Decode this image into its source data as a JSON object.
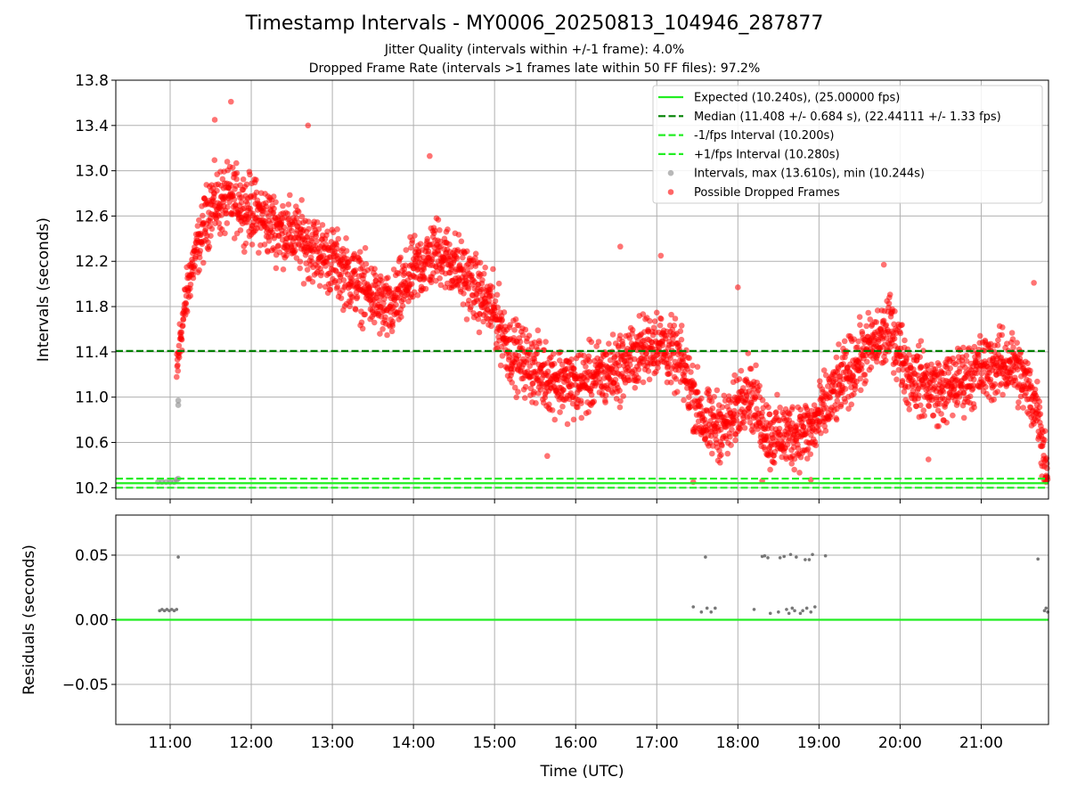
{
  "header": {
    "title": "Timestamp Intervals - MY0006_20250813_104946_287877",
    "subtitle_1": "Jitter Quality (intervals within +/-1 frame): 4.0%",
    "subtitle_2": "Dropped Frame Rate (intervals >1 frames late within 50 FF files): 97.2%"
  },
  "chart_data": [
    {
      "type": "scatter",
      "name": "intervals",
      "ylabel": "Intervals (seconds)",
      "ylim": [
        10.1,
        13.8
      ],
      "xlim_hours": [
        10.33,
        21.83
      ],
      "yticks": [
        "10.2",
        "10.6",
        "11.0",
        "11.4",
        "11.8",
        "12.2",
        "12.6",
        "13.0",
        "13.4",
        "13.8"
      ],
      "grid": true,
      "legend_position": "top-right",
      "reference_lines": [
        {
          "label": "Expected (10.240s), (25.00000 fps)",
          "y": 10.24,
          "style": "solid",
          "color": "#22ee22"
        },
        {
          "label": "Median (11.408 +/- 0.684 s), (22.44111 +/- 1.33 fps)",
          "y": 11.408,
          "style": "dashed",
          "color": "#008000"
        },
        {
          "label": "-1/fps Interval (10.200s)",
          "y": 10.2,
          "style": "dashed",
          "color": "#22ee22"
        },
        {
          "label": "+1/fps Interval (10.280s)",
          "y": 10.28,
          "style": "dashed",
          "color": "#22ee22"
        }
      ],
      "series": [
        {
          "name": "Intervals, max (13.610s), min (10.244s)",
          "color": "#888888",
          "points": [
            [
              10.85,
              10.25
            ],
            [
              10.9,
              10.25
            ],
            [
              10.95,
              10.25
            ],
            [
              11.0,
              10.25
            ],
            [
              11.05,
              10.25
            ],
            [
              11.08,
              10.27
            ],
            [
              11.1,
              10.28
            ],
            [
              11.1,
              10.97
            ],
            [
              11.1,
              10.93
            ]
          ]
        },
        {
          "name": "Possible Dropped Frames",
          "color": "#ff0000",
          "trend": [
            [
              11.05,
              10.9
            ],
            [
              11.12,
              11.5
            ],
            [
              11.25,
              12.1
            ],
            [
              11.5,
              12.7
            ],
            [
              11.8,
              12.75
            ],
            [
              12.2,
              12.55
            ],
            [
              12.6,
              12.4
            ],
            [
              13.0,
              12.2
            ],
            [
              13.4,
              11.95
            ],
            [
              13.7,
              11.75
            ],
            [
              14.0,
              12.1
            ],
            [
              14.3,
              12.3
            ],
            [
              14.6,
              12.1
            ],
            [
              15.0,
              11.75
            ],
            [
              15.2,
              11.4
            ],
            [
              15.6,
              11.2
            ],
            [
              16.0,
              11.1
            ],
            [
              16.5,
              11.25
            ],
            [
              17.0,
              11.5
            ],
            [
              17.3,
              11.3
            ],
            [
              17.6,
              10.75
            ],
            [
              17.9,
              10.75
            ],
            [
              18.1,
              11.1
            ],
            [
              18.4,
              10.65
            ],
            [
              18.9,
              10.7
            ],
            [
              19.2,
              11.05
            ],
            [
              19.5,
              11.35
            ],
            [
              19.9,
              11.6
            ],
            [
              20.1,
              11.2
            ],
            [
              20.5,
              11.05
            ],
            [
              21.0,
              11.25
            ],
            [
              21.4,
              11.3
            ],
            [
              21.7,
              10.9
            ],
            [
              21.8,
              10.4
            ]
          ],
          "outliers": [
            [
              11.75,
              13.61
            ],
            [
              11.55,
              13.45
            ],
            [
              12.7,
              13.4
            ],
            [
              14.2,
              13.13
            ],
            [
              16.55,
              12.33
            ],
            [
              17.05,
              12.25
            ],
            [
              19.8,
              12.17
            ],
            [
              21.65,
              12.01
            ],
            [
              18.0,
              11.97
            ],
            [
              15.65,
              10.48
            ],
            [
              20.35,
              10.45
            ],
            [
              17.45,
              10.25
            ],
            [
              18.3,
              10.26
            ],
            [
              18.9,
              10.27
            ],
            [
              21.75,
              10.3
            ],
            [
              21.8,
              10.25
            ]
          ]
        }
      ]
    },
    {
      "type": "scatter",
      "name": "residuals",
      "ylabel": "Residuals (seconds)",
      "xlabel": "Time (UTC)",
      "ylim": [
        -0.081,
        0.081
      ],
      "yticks": [
        "−0.05",
        "0.00",
        "0.05"
      ],
      "xticks": [
        "11:00",
        "12:00",
        "13:00",
        "14:00",
        "15:00",
        "16:00",
        "17:00",
        "18:00",
        "19:00",
        "20:00",
        "21:00"
      ],
      "grid": true,
      "zero_line_color": "#22ee22",
      "series": [
        {
          "name": "residuals",
          "color": "#777777",
          "points": [
            [
              10.87,
              0.007
            ],
            [
              10.9,
              0.008
            ],
            [
              10.93,
              0.007
            ],
            [
              10.96,
              0.008
            ],
            [
              10.99,
              0.007
            ],
            [
              11.02,
              0.008
            ],
            [
              11.05,
              0.007
            ],
            [
              11.08,
              0.008
            ],
            [
              11.1,
              0.0485
            ],
            [
              17.45,
              0.01
            ],
            [
              17.55,
              0.006
            ],
            [
              17.6,
              0.0485
            ],
            [
              17.62,
              0.009
            ],
            [
              17.67,
              0.006
            ],
            [
              17.72,
              0.009
            ],
            [
              18.2,
              0.008
            ],
            [
              18.3,
              0.049
            ],
            [
              18.33,
              0.0495
            ],
            [
              18.37,
              0.048
            ],
            [
              18.4,
              0.005
            ],
            [
              18.5,
              0.006
            ],
            [
              18.52,
              0.048
            ],
            [
              18.57,
              0.049
            ],
            [
              18.6,
              0.008
            ],
            [
              18.63,
              0.005
            ],
            [
              18.65,
              0.0505
            ],
            [
              18.67,
              0.009
            ],
            [
              18.7,
              0.007
            ],
            [
              18.72,
              0.0485
            ],
            [
              18.77,
              0.005
            ],
            [
              18.8,
              0.007
            ],
            [
              18.83,
              0.0465
            ],
            [
              18.85,
              0.009
            ],
            [
              18.88,
              0.0465
            ],
            [
              18.9,
              0.006
            ],
            [
              18.92,
              0.0505
            ],
            [
              18.95,
              0.01
            ],
            [
              19.08,
              0.0495
            ],
            [
              21.7,
              0.047
            ],
            [
              21.78,
              0.007
            ],
            [
              21.8,
              0.009
            ],
            [
              21.82,
              0.006
            ]
          ]
        }
      ]
    }
  ]
}
